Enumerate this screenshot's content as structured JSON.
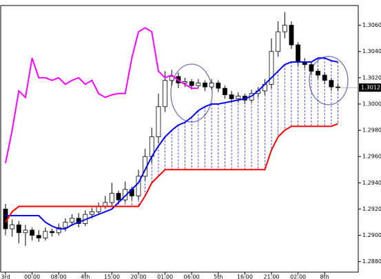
{
  "chart_data": {
    "type": "candlestick",
    "categories": [
      "3rd",
      null,
      null,
      null,
      "00:00",
      null,
      null,
      null,
      "08:00",
      null,
      null,
      null,
      "4th",
      null,
      null,
      null,
      "15:00",
      null,
      null,
      null,
      "20:00",
      null,
      null,
      null,
      "01:00",
      null,
      null,
      null,
      "06:00",
      null,
      null,
      null,
      "5th",
      null,
      null,
      null,
      "16:00",
      null,
      null,
      null,
      "21:00",
      null,
      null,
      null,
      "02:00",
      null,
      null,
      null,
      "8th",
      null,
      null
    ],
    "open": [
      1.292,
      1.2905,
      1.2908,
      1.2902,
      1.2904,
      1.29,
      1.2898,
      1.2903,
      1.2902,
      1.2906,
      1.291,
      1.2913,
      1.2909,
      1.2916,
      1.2918,
      1.2922,
      1.2925,
      1.2932,
      1.2927,
      1.2935,
      1.293,
      1.2945,
      1.296,
      1.2975,
      1.2998,
      1.3018,
      1.3021,
      1.3016,
      1.3017,
      1.3014,
      1.3016,
      1.3013,
      1.3016,
      1.3012,
      1.3007,
      1.3004,
      1.3006,
      1.3003,
      1.3008,
      1.301,
      1.3015,
      1.304,
      1.3055,
      1.306,
      1.3045,
      1.3032,
      1.303,
      1.3025,
      1.3022,
      1.3018,
      1.3013
    ],
    "high": [
      1.2924,
      1.2912,
      1.2911,
      1.2908,
      1.2906,
      1.2904,
      1.2906,
      1.2905,
      1.2909,
      1.2913,
      1.2916,
      1.2917,
      1.2919,
      1.2921,
      1.2925,
      1.293,
      1.294,
      1.2934,
      1.2941,
      1.2937,
      1.295,
      1.2966,
      1.2982,
      1.3008,
      1.3025,
      1.3026,
      1.3024,
      1.302,
      1.3019,
      1.3019,
      1.3018,
      1.3019,
      1.3018,
      1.3014,
      1.301,
      1.3009,
      1.3008,
      1.3011,
      1.3013,
      1.3019,
      1.305,
      1.3063,
      1.307,
      1.3063,
      1.3047,
      1.3035,
      1.3032,
      1.3027,
      1.3024,
      1.302,
      1.3015
    ],
    "low": [
      1.29,
      1.2899,
      1.2894,
      1.2892,
      1.2896,
      1.2895,
      1.2896,
      1.2899,
      1.29,
      1.2903,
      1.2907,
      1.2906,
      1.2907,
      1.2913,
      1.2916,
      1.292,
      1.2922,
      1.2924,
      1.2925,
      1.2927,
      1.2927,
      1.2942,
      1.2955,
      1.297,
      1.2994,
      1.3014,
      1.3012,
      1.3013,
      1.3011,
      1.3012,
      1.301,
      1.3011,
      1.3009,
      1.3004,
      1.3001,
      1.3001,
      1.3,
      1.3001,
      1.3005,
      1.3007,
      1.3012,
      1.3036,
      1.305,
      1.3042,
      1.3029,
      1.3027,
      1.3022,
      1.3019,
      1.3015,
      1.301,
      1.301
    ],
    "close": [
      1.2905,
      1.2908,
      1.2902,
      1.2904,
      1.29,
      1.2898,
      1.2903,
      1.2902,
      1.2906,
      1.291,
      1.2913,
      1.2909,
      1.2916,
      1.2918,
      1.2922,
      1.2925,
      1.2932,
      1.2927,
      1.2935,
      1.293,
      1.2945,
      1.296,
      1.2975,
      1.2998,
      1.3018,
      1.3021,
      1.3016,
      1.3017,
      1.3014,
      1.3016,
      1.3013,
      1.3016,
      1.3012,
      1.3007,
      1.3004,
      1.3006,
      1.3003,
      1.3008,
      1.301,
      1.3015,
      1.304,
      1.3055,
      1.306,
      1.3045,
      1.3032,
      1.303,
      1.3025,
      1.3022,
      1.3018,
      1.3013,
      1.30125
    ],
    "lines": [
      {
        "color": "#0000ff",
        "values": [
          1.2915,
          1.2915,
          1.2915,
          1.2915,
          1.2915,
          1.2915,
          1.291,
          1.2907,
          1.2905,
          1.2905,
          1.2908,
          1.291,
          1.2912,
          1.2914,
          1.2916,
          1.2918,
          1.292,
          1.2925,
          1.293,
          1.2935,
          1.294,
          1.295,
          1.296,
          1.2968,
          1.2975,
          1.298,
          1.2984,
          1.2986,
          1.299,
          1.2995,
          1.2998,
          1.3,
          1.3,
          1.3001,
          1.3002,
          1.3003,
          1.3004,
          1.3006,
          1.301,
          1.3015,
          1.302,
          1.3025,
          1.303,
          1.3032,
          1.3032,
          1.3032,
          1.3032,
          1.3035,
          1.3035,
          1.3033,
          1.3032
        ]
      },
      {
        "color": "#ff0000",
        "values": [
          1.291,
          1.2918,
          1.2922,
          1.2922,
          1.2922,
          1.2922,
          1.2922,
          1.2922,
          1.2922,
          1.2922,
          1.2922,
          1.2922,
          1.2922,
          1.2922,
          1.2922,
          1.2922,
          1.2922,
          1.2922,
          1.2922,
          1.2922,
          1.2922,
          1.293,
          1.294,
          1.2945,
          1.295,
          1.295,
          1.295,
          1.295,
          1.295,
          1.295,
          1.295,
          1.295,
          1.295,
          1.295,
          1.295,
          1.295,
          1.295,
          1.295,
          1.295,
          1.295,
          1.2965,
          1.2975,
          1.298,
          1.2983,
          1.2983,
          1.2983,
          1.2983,
          1.2983,
          1.2983,
          1.2983,
          1.2985
        ]
      },
      {
        "color": "#ff00ff",
        "values": [
          1.2955,
          1.298,
          1.301,
          1.3005,
          1.3035,
          1.302,
          1.302,
          1.3018,
          1.302,
          1.3015,
          1.3018,
          1.302,
          1.3015,
          1.3018,
          1.3008,
          1.3005,
          1.3007,
          1.3008,
          1.3008,
          1.3035,
          1.3055,
          1.3058,
          1.3055,
          1.3025,
          1.302,
          1.3022,
          1.3018,
          1.3015,
          1.3012,
          1.3012,
          null,
          null,
          null,
          null,
          null,
          null,
          null,
          null,
          null,
          null,
          null,
          null,
          null,
          null,
          null,
          null,
          null,
          null,
          null,
          null,
          null
        ]
      }
    ],
    "cloud_color": "#0000ff",
    "ylim": [
      1.2872,
      1.3075
    ],
    "yticks": [
      {
        "value": 1.288,
        "label": "1.28800"
      },
      {
        "value": 1.29,
        "label": "1.29000"
      },
      {
        "value": 1.292,
        "label": "1.29200"
      },
      {
        "value": 1.294,
        "label": "1.29400"
      },
      {
        "value": 1.296,
        "label": "1.29600"
      },
      {
        "value": 1.298,
        "label": "1.29800"
      },
      {
        "value": 1.3,
        "label": "1.30000"
      },
      {
        "value": 1.302,
        "label": "1.30200"
      },
      {
        "value": 1.304,
        "label": "1.30400"
      },
      {
        "value": 1.306,
        "label": "1.30600"
      }
    ],
    "last_price": 1.30125
  }
}
